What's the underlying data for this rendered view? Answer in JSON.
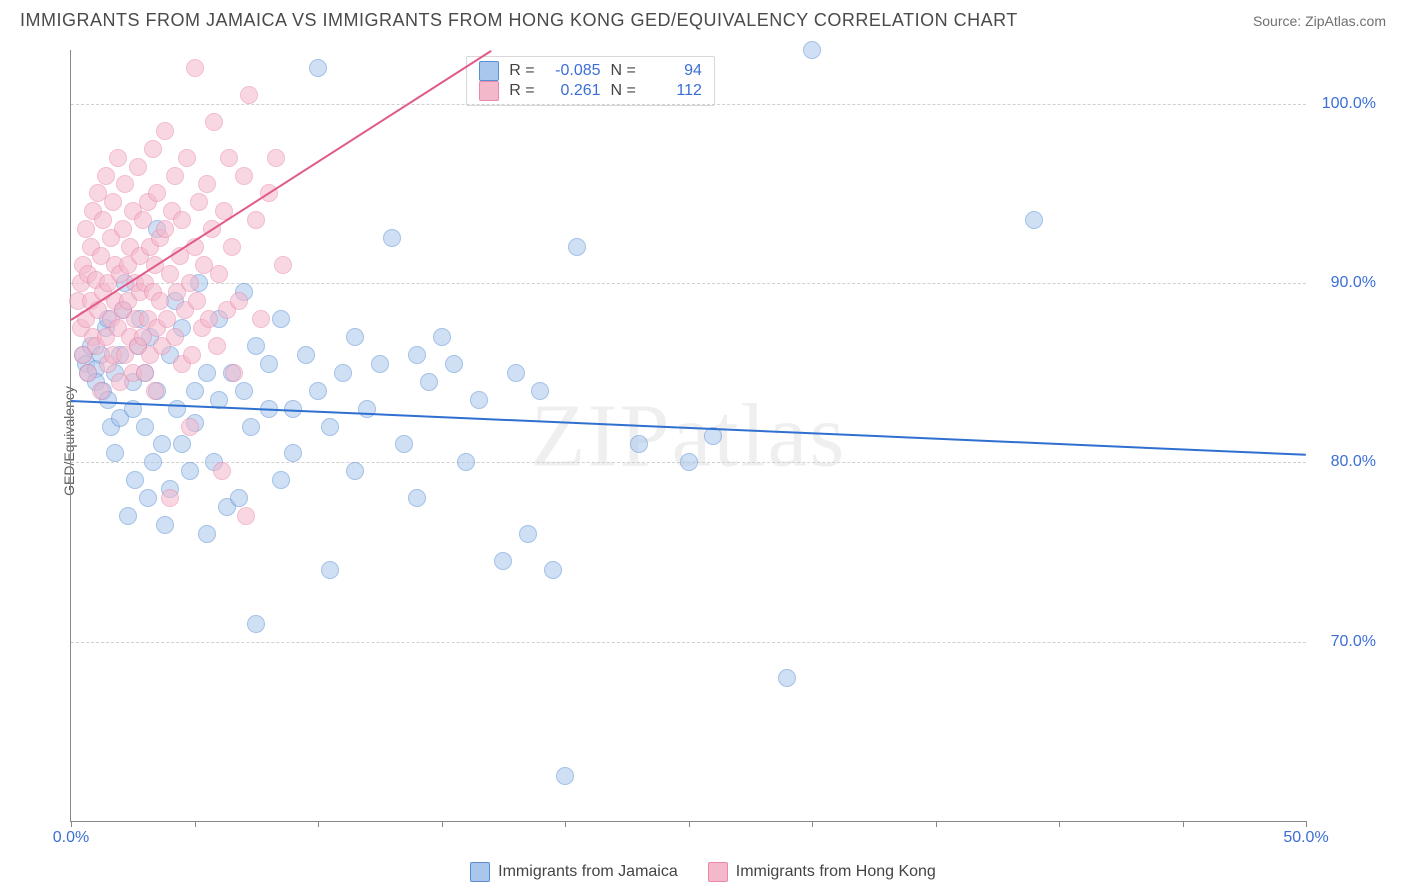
{
  "header": {
    "title": "IMMIGRANTS FROM JAMAICA VS IMMIGRANTS FROM HONG KONG GED/EQUIVALENCY CORRELATION CHART",
    "source": "Source: ZipAtlas.com"
  },
  "ylabel": "GED/Equivalency",
  "watermark": "ZIPatlas",
  "chart": {
    "type": "scatter",
    "xlim": [
      0,
      50
    ],
    "ylim": [
      60,
      103
    ],
    "xtick_positions": [
      0,
      5,
      10,
      15,
      20,
      25,
      30,
      35,
      40,
      45,
      50
    ],
    "xtick_labels": {
      "0": "0.0%",
      "50": "50.0%"
    },
    "ytick_positions": [
      70,
      80,
      90,
      100
    ],
    "ytick_labels": {
      "70": "70.0%",
      "80": "80.0%",
      "90": "90.0%",
      "100": "100.0%"
    },
    "grid_color": "#d0d0d0",
    "background_color": "#ffffff",
    "axis_color": "#888888",
    "tick_label_color": "#3b6fd6",
    "series": [
      {
        "name": "Immigrants from Jamaica",
        "fill": "#a9c6ec",
        "stroke": "#5a8fd6",
        "line_color": "#2f6fd0",
        "R": "-0.085",
        "N": "94",
        "trend": {
          "x1": 0,
          "y1": 83.5,
          "x2": 50,
          "y2": 80.5
        },
        "points": [
          [
            0.5,
            86
          ],
          [
            0.6,
            85.5
          ],
          [
            0.8,
            86.5
          ],
          [
            0.7,
            85
          ],
          [
            1,
            85.2
          ],
          [
            1,
            84.5
          ],
          [
            1.2,
            86
          ],
          [
            1.3,
            84
          ],
          [
            1.4,
            87.5
          ],
          [
            1.5,
            83.5
          ],
          [
            1.5,
            88
          ],
          [
            1.6,
            82
          ],
          [
            1.8,
            85
          ],
          [
            1.8,
            80.5
          ],
          [
            2,
            86
          ],
          [
            2,
            82.5
          ],
          [
            2.1,
            88.5
          ],
          [
            2.2,
            90
          ],
          [
            2.3,
            77
          ],
          [
            2.5,
            83
          ],
          [
            2.5,
            84.5
          ],
          [
            2.6,
            79
          ],
          [
            2.7,
            86.5
          ],
          [
            2.8,
            88
          ],
          [
            3,
            82
          ],
          [
            3,
            85
          ],
          [
            3.1,
            78
          ],
          [
            3.2,
            87
          ],
          [
            3.3,
            80
          ],
          [
            3.5,
            93
          ],
          [
            3.5,
            84
          ],
          [
            3.7,
            81
          ],
          [
            3.8,
            76.5
          ],
          [
            4,
            86
          ],
          [
            4,
            78.5
          ],
          [
            4.2,
            89
          ],
          [
            4.3,
            83
          ],
          [
            4.5,
            81
          ],
          [
            4.5,
            87.5
          ],
          [
            4.8,
            79.5
          ],
          [
            5,
            84
          ],
          [
            5,
            82.2
          ],
          [
            5.2,
            90
          ],
          [
            5.5,
            76
          ],
          [
            5.5,
            85
          ],
          [
            5.8,
            80
          ],
          [
            6,
            83.5
          ],
          [
            6,
            88
          ],
          [
            6.3,
            77.5
          ],
          [
            6.5,
            85
          ],
          [
            6.8,
            78
          ],
          [
            7,
            84
          ],
          [
            7,
            89.5
          ],
          [
            7.3,
            82
          ],
          [
            7.5,
            86.5
          ],
          [
            7.5,
            71
          ],
          [
            8,
            83
          ],
          [
            8,
            85.5
          ],
          [
            8.5,
            79
          ],
          [
            8.5,
            88
          ],
          [
            9,
            83
          ],
          [
            9,
            80.5
          ],
          [
            9.5,
            86
          ],
          [
            10,
            84
          ],
          [
            10,
            102
          ],
          [
            10.5,
            82
          ],
          [
            10.5,
            74
          ],
          [
            11,
            85
          ],
          [
            11.5,
            79.5
          ],
          [
            11.5,
            87
          ],
          [
            12,
            83
          ],
          [
            12.5,
            85.5
          ],
          [
            13,
            92.5
          ],
          [
            13.5,
            81
          ],
          [
            14,
            86
          ],
          [
            14,
            78
          ],
          [
            14.5,
            84.5
          ],
          [
            15,
            87
          ],
          [
            15.5,
            85.5
          ],
          [
            16,
            80
          ],
          [
            16.5,
            83.5
          ],
          [
            17.5,
            74.5
          ],
          [
            18,
            85
          ],
          [
            18.5,
            76
          ],
          [
            19,
            84
          ],
          [
            19.5,
            74
          ],
          [
            20,
            62.5
          ],
          [
            20.5,
            92
          ],
          [
            23,
            81
          ],
          [
            25,
            80
          ],
          [
            26,
            81.5
          ],
          [
            29,
            68
          ],
          [
            30,
            103
          ],
          [
            39,
            93.5
          ]
        ]
      },
      {
        "name": "Immigrants from Hong Kong",
        "fill": "#f4b8cb",
        "stroke": "#e888ab",
        "line_color": "#e05a8a",
        "R": "0.261",
        "N": "112",
        "trend": {
          "x1": 0,
          "y1": 88,
          "x2": 17,
          "y2": 103
        },
        "points": [
          [
            0.3,
            89
          ],
          [
            0.4,
            90
          ],
          [
            0.4,
            87.5
          ],
          [
            0.5,
            91
          ],
          [
            0.5,
            86
          ],
          [
            0.6,
            93
          ],
          [
            0.6,
            88
          ],
          [
            0.7,
            90.5
          ],
          [
            0.7,
            85
          ],
          [
            0.8,
            92
          ],
          [
            0.8,
            89
          ],
          [
            0.9,
            87
          ],
          [
            0.9,
            94
          ],
          [
            1,
            90.2
          ],
          [
            1,
            86.5
          ],
          [
            1.1,
            88.5
          ],
          [
            1.1,
            95
          ],
          [
            1.2,
            91.5
          ],
          [
            1.2,
            84
          ],
          [
            1.3,
            89.5
          ],
          [
            1.3,
            93.5
          ],
          [
            1.4,
            87
          ],
          [
            1.4,
            96
          ],
          [
            1.5,
            90
          ],
          [
            1.5,
            85.5
          ],
          [
            1.6,
            88
          ],
          [
            1.6,
            92.5
          ],
          [
            1.7,
            94.5
          ],
          [
            1.7,
            86
          ],
          [
            1.8,
            89
          ],
          [
            1.8,
            91
          ],
          [
            1.9,
            87.5
          ],
          [
            1.9,
            97
          ],
          [
            2,
            90.5
          ],
          [
            2,
            84.5
          ],
          [
            2.1,
            93
          ],
          [
            2.1,
            88.5
          ],
          [
            2.2,
            86
          ],
          [
            2.2,
            95.5
          ],
          [
            2.3,
            91
          ],
          [
            2.3,
            89
          ],
          [
            2.4,
            87
          ],
          [
            2.4,
            92
          ],
          [
            2.5,
            94
          ],
          [
            2.5,
            85
          ],
          [
            2.6,
            90
          ],
          [
            2.6,
            88
          ],
          [
            2.7,
            96.5
          ],
          [
            2.7,
            86.5
          ],
          [
            2.8,
            91.5
          ],
          [
            2.8,
            89.5
          ],
          [
            2.9,
            93.5
          ],
          [
            2.9,
            87
          ],
          [
            3,
            90
          ],
          [
            3,
            85
          ],
          [
            3.1,
            88
          ],
          [
            3.1,
            94.5
          ],
          [
            3.2,
            92
          ],
          [
            3.2,
            86
          ],
          [
            3.3,
            89.5
          ],
          [
            3.3,
            97.5
          ],
          [
            3.4,
            91
          ],
          [
            3.4,
            84
          ],
          [
            3.5,
            87.5
          ],
          [
            3.5,
            95
          ],
          [
            3.6,
            89
          ],
          [
            3.6,
            92.5
          ],
          [
            3.7,
            86.5
          ],
          [
            3.8,
            93
          ],
          [
            3.8,
            98.5
          ],
          [
            3.9,
            88
          ],
          [
            4,
            90.5
          ],
          [
            4,
            78
          ],
          [
            4.1,
            94
          ],
          [
            4.2,
            87
          ],
          [
            4.2,
            96
          ],
          [
            4.3,
            89.5
          ],
          [
            4.4,
            91.5
          ],
          [
            4.5,
            85.5
          ],
          [
            4.5,
            93.5
          ],
          [
            4.6,
            88.5
          ],
          [
            4.7,
            97
          ],
          [
            4.8,
            90
          ],
          [
            4.8,
            82
          ],
          [
            4.9,
            86
          ],
          [
            5,
            92
          ],
          [
            5,
            102
          ],
          [
            5.1,
            89
          ],
          [
            5.2,
            94.5
          ],
          [
            5.3,
            87.5
          ],
          [
            5.4,
            91
          ],
          [
            5.5,
            95.5
          ],
          [
            5.6,
            88
          ],
          [
            5.7,
            93
          ],
          [
            5.8,
            99
          ],
          [
            5.9,
            86.5
          ],
          [
            6,
            90.5
          ],
          [
            6.1,
            79.5
          ],
          [
            6.2,
            94
          ],
          [
            6.3,
            88.5
          ],
          [
            6.4,
            97
          ],
          [
            6.5,
            92
          ],
          [
            6.6,
            85
          ],
          [
            6.8,
            89
          ],
          [
            7,
            96
          ],
          [
            7.1,
            77
          ],
          [
            7.2,
            100.5
          ],
          [
            7.5,
            93.5
          ],
          [
            7.7,
            88
          ],
          [
            8,
            95
          ],
          [
            8.3,
            97
          ],
          [
            8.6,
            91
          ]
        ]
      }
    ]
  },
  "legend_bottom": [
    {
      "label": "Immigrants from Jamaica",
      "fill": "#a9c6ec",
      "stroke": "#5a8fd6"
    },
    {
      "label": "Immigrants from Hong Kong",
      "fill": "#f4b8cb",
      "stroke": "#e888ab"
    }
  ]
}
